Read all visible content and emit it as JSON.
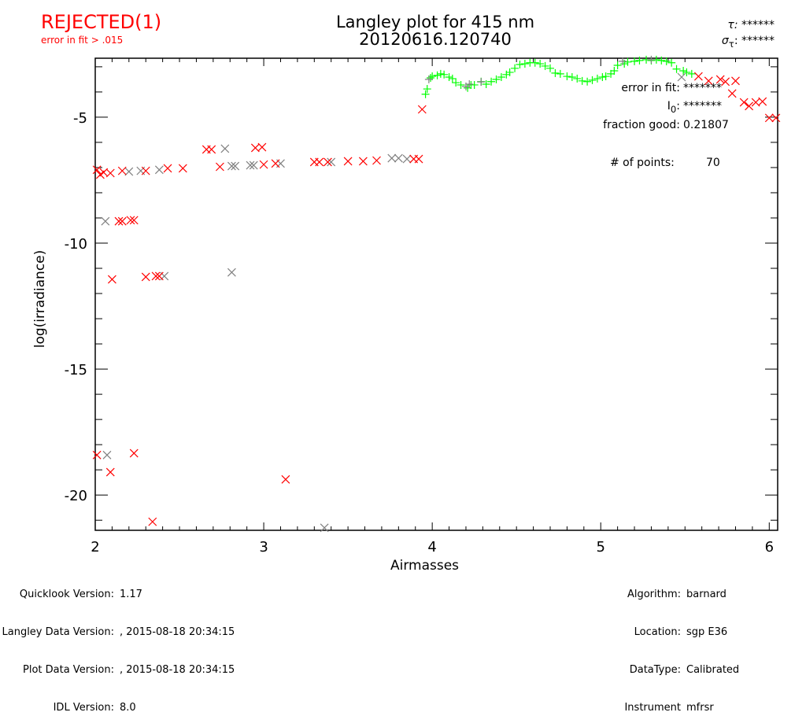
{
  "header": {
    "status": "REJECTED(1)",
    "status_reason": "error in fit > .015",
    "title_line1": "Langley plot for 415 nm",
    "title_line2": "20120616.120740",
    "tau_label": "τ:",
    "tau_value": "******",
    "sigma_tau_label": "σ",
    "sigma_tau_sub": "τ",
    "sigma_tau_value": "******"
  },
  "annotations": {
    "error_in_fit_label": "error in fit:",
    "error_in_fit_value": "*******",
    "i0_label": "I",
    "i0_sub": "0",
    "i0_value": "*******",
    "fraction_good_label": "fraction good:",
    "fraction_good_value": "0.21807",
    "num_points_label": "# of points:",
    "num_points_value": "70"
  },
  "footer": {
    "left_labels": [
      "Quicklook Version:",
      "Langley Data Version:",
      "Plot Data Version:",
      "IDL Version:"
    ],
    "left_values": [
      "1.17",
      ", 2015-08-18 20:34:15",
      ", 2015-08-18 20:34:15",
      "8.0"
    ],
    "right_labels": [
      "Algorithm:",
      "Location:",
      "DataType:",
      "Instrument"
    ],
    "right_values": [
      "barnard",
      "sgp E36",
      "Calibrated",
      "mfrsr"
    ]
  },
  "chart_data": {
    "type": "scatter",
    "title": "Langley plot for 415 nm",
    "xlabel": "Airmasses",
    "ylabel": "log(irradiance)",
    "xlim": [
      2,
      6.05
    ],
    "ylim": [
      -21.4,
      -2.66
    ],
    "xticks": [
      2,
      3,
      4,
      5,
      6
    ],
    "xtick_labels": [
      "2",
      "3",
      "4",
      "5",
      "6"
    ],
    "yticks": [
      -5,
      -10,
      -15,
      -20
    ],
    "ytick_labels": [
      "-5",
      "-10",
      "-15",
      "-20"
    ],
    "grid": false,
    "colors": {
      "green": "#00ff00",
      "red": "#ff0000",
      "gray": "#808080"
    },
    "series": [
      {
        "marker": "plus",
        "color": "#00ff00",
        "points": [
          [
            3.96,
            -4.09
          ],
          [
            3.97,
            -3.88
          ],
          [
            3.99,
            -3.44
          ],
          [
            4.0,
            -3.38
          ],
          [
            4.03,
            -3.34
          ],
          [
            4.05,
            -3.28
          ],
          [
            4.07,
            -3.31
          ],
          [
            4.1,
            -3.41
          ],
          [
            4.12,
            -3.47
          ],
          [
            4.14,
            -3.63
          ],
          [
            4.17,
            -3.72
          ],
          [
            4.21,
            -3.84
          ],
          [
            4.23,
            -3.72
          ],
          [
            4.25,
            -3.72
          ],
          [
            4.29,
            -3.59
          ],
          [
            4.32,
            -3.69
          ],
          [
            4.35,
            -3.59
          ],
          [
            4.38,
            -3.5
          ],
          [
            4.41,
            -3.41
          ],
          [
            4.44,
            -3.31
          ],
          [
            4.46,
            -3.22
          ],
          [
            4.49,
            -3.06
          ],
          [
            4.52,
            -2.91
          ],
          [
            4.55,
            -2.88
          ],
          [
            4.58,
            -2.84
          ],
          [
            4.61,
            -2.84
          ],
          [
            4.64,
            -2.88
          ],
          [
            4.67,
            -2.97
          ],
          [
            4.7,
            -3.06
          ],
          [
            4.73,
            -3.25
          ],
          [
            4.76,
            -3.28
          ],
          [
            4.8,
            -3.38
          ],
          [
            4.83,
            -3.41
          ],
          [
            4.86,
            -3.47
          ],
          [
            4.89,
            -3.56
          ],
          [
            4.92,
            -3.59
          ],
          [
            4.95,
            -3.53
          ],
          [
            4.98,
            -3.47
          ],
          [
            5.01,
            -3.41
          ],
          [
            5.03,
            -3.38
          ],
          [
            5.06,
            -3.28
          ],
          [
            5.08,
            -3.16
          ],
          [
            5.1,
            -2.94
          ],
          [
            5.14,
            -2.88
          ],
          [
            5.16,
            -2.81
          ],
          [
            5.2,
            -2.78
          ],
          [
            5.23,
            -2.75
          ],
          [
            5.27,
            -2.72
          ],
          [
            5.3,
            -2.75
          ],
          [
            5.33,
            -2.72
          ],
          [
            5.36,
            -2.75
          ],
          [
            5.39,
            -2.78
          ],
          [
            5.42,
            -2.84
          ],
          [
            5.45,
            -3.09
          ],
          [
            5.49,
            -3.16
          ],
          [
            5.51,
            -3.22
          ],
          [
            5.54,
            -3.28
          ]
        ]
      },
      {
        "marker": "plus",
        "color": "#808080",
        "points": [
          [
            3.98,
            -3.5
          ],
          [
            4.2,
            -3.78
          ],
          [
            4.22,
            -3.69
          ],
          [
            4.29,
            -3.6
          ],
          [
            5.13,
            -2.78
          ],
          [
            5.3,
            -2.72
          ]
        ]
      },
      {
        "marker": "x",
        "color": "#808080",
        "points": [
          [
            2.06,
            -9.13
          ],
          [
            2.07,
            -18.41
          ],
          [
            2.2,
            -7.16
          ],
          [
            2.27,
            -7.13
          ],
          [
            2.38,
            -7.09
          ],
          [
            2.41,
            -11.31
          ],
          [
            2.77,
            -6.25
          ],
          [
            2.81,
            -6.94
          ],
          [
            2.83,
            -6.94
          ],
          [
            2.81,
            -11.16
          ],
          [
            2.92,
            -6.91
          ],
          [
            2.94,
            -6.91
          ],
          [
            3.1,
            -6.84
          ],
          [
            3.4,
            -6.78
          ],
          [
            3.76,
            -6.63
          ],
          [
            3.8,
            -6.63
          ],
          [
            3.85,
            -6.66
          ],
          [
            3.36,
            -21.3
          ],
          [
            5.48,
            -3.41
          ]
        ]
      },
      {
        "marker": "x",
        "color": "#ff0000",
        "points": [
          [
            2.01,
            -7.09
          ],
          [
            2.03,
            -7.28
          ],
          [
            2.05,
            -7.19
          ],
          [
            2.09,
            -7.22
          ],
          [
            2.16,
            -7.13
          ],
          [
            2.3,
            -7.13
          ],
          [
            2.43,
            -7.03
          ],
          [
            2.52,
            -7.03
          ],
          [
            2.66,
            -6.28
          ],
          [
            2.69,
            -6.28
          ],
          [
            2.74,
            -6.97
          ],
          [
            2.95,
            -6.22
          ],
          [
            2.99,
            -6.19
          ],
          [
            3.0,
            -6.88
          ],
          [
            3.07,
            -6.84
          ],
          [
            3.3,
            -6.78
          ],
          [
            3.33,
            -6.78
          ],
          [
            3.38,
            -6.78
          ],
          [
            3.5,
            -6.75
          ],
          [
            3.59,
            -6.75
          ],
          [
            3.67,
            -6.72
          ],
          [
            3.89,
            -6.66
          ],
          [
            3.92,
            -6.66
          ],
          [
            3.94,
            -4.69
          ],
          [
            2.14,
            -9.13
          ],
          [
            2.16,
            -9.13
          ],
          [
            2.21,
            -9.09
          ],
          [
            2.23,
            -9.09
          ],
          [
            2.1,
            -11.44
          ],
          [
            2.3,
            -11.34
          ],
          [
            2.36,
            -11.31
          ],
          [
            2.38,
            -11.31
          ],
          [
            2.01,
            -18.41
          ],
          [
            2.09,
            -19.09
          ],
          [
            2.23,
            -18.34
          ],
          [
            2.34,
            -21.06
          ],
          [
            3.13,
            -19.38
          ],
          [
            5.58,
            -3.38
          ],
          [
            5.64,
            -3.56
          ],
          [
            5.71,
            -3.5
          ],
          [
            5.74,
            -3.59
          ],
          [
            5.8,
            -3.56
          ],
          [
            5.78,
            -4.06
          ],
          [
            5.85,
            -4.41
          ],
          [
            5.88,
            -4.56
          ],
          [
            5.92,
            -4.41
          ],
          [
            5.96,
            -4.38
          ],
          [
            6.0,
            -5.03
          ],
          [
            6.04,
            -5.03
          ]
        ]
      }
    ]
  }
}
